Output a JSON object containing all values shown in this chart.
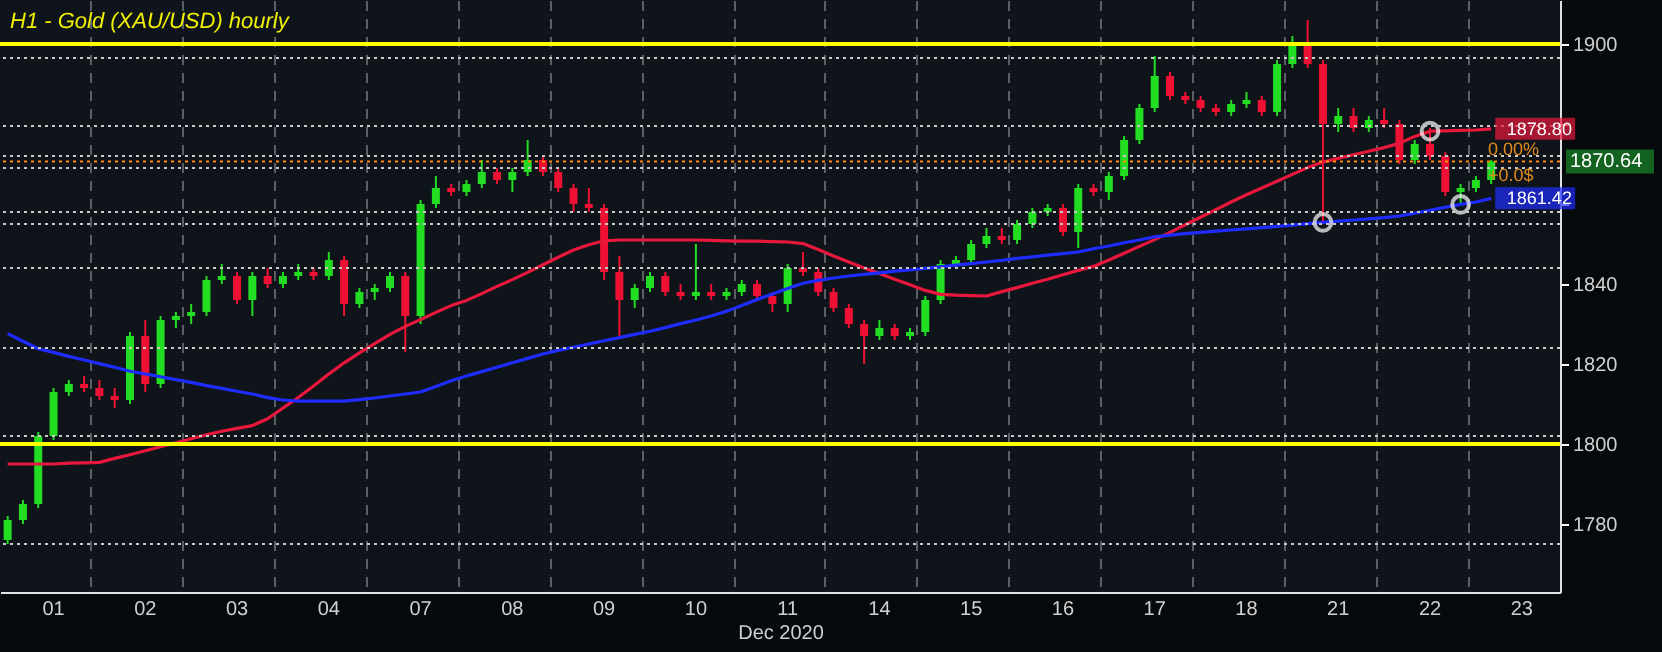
{
  "chart_data": {
    "type": "candlestick",
    "title": "H1 - Gold (XAU/USD) hourly",
    "xlabel": "Dec 2020",
    "categories": [
      null,
      null,
      null,
      "01",
      null,
      null,
      null,
      null,
      null,
      "02",
      null,
      null,
      null,
      null,
      null,
      "03",
      null,
      null,
      null,
      null,
      null,
      "04",
      null,
      null,
      null,
      null,
      null,
      "07",
      null,
      null,
      null,
      null,
      null,
      "08",
      null,
      null,
      null,
      null,
      null,
      "09",
      null,
      null,
      null,
      null,
      null,
      "10",
      null,
      null,
      null,
      null,
      null,
      "11",
      null,
      null,
      null,
      null,
      null,
      "14",
      null,
      null,
      null,
      null,
      null,
      "15",
      null,
      null,
      null,
      null,
      null,
      "16",
      null,
      null,
      null,
      null,
      null,
      "17",
      null,
      null,
      null,
      null,
      null,
      "18",
      null,
      null,
      null,
      null,
      null,
      "21",
      null,
      null,
      null,
      null,
      null,
      "22",
      null,
      null,
      null,
      null,
      null,
      "23",
      null,
      null
    ],
    "ohlc": [
      [
        1776,
        1782,
        1775,
        1781
      ],
      [
        1781,
        1786,
        1780,
        1785
      ],
      [
        1785,
        1803,
        1784,
        1802
      ],
      [
        1802,
        1814,
        1801,
        1813
      ],
      [
        1813,
        1816,
        1812,
        1815
      ],
      [
        1815,
        1817,
        1813,
        1814
      ],
      [
        1814,
        1816,
        1811,
        1812
      ],
      [
        1812,
        1814,
        1809,
        1811
      ],
      [
        1811,
        1828,
        1810,
        1827
      ],
      [
        1827,
        1831,
        1813,
        1815
      ],
      [
        1815,
        1832,
        1814,
        1831
      ],
      [
        1831,
        1833,
        1829,
        1832
      ],
      [
        1832,
        1835,
        1830,
        1833
      ],
      [
        1833,
        1842,
        1832,
        1841
      ],
      [
        1841,
        1845,
        1840,
        1842
      ],
      [
        1842,
        1843,
        1835,
        1836
      ],
      [
        1836,
        1843,
        1832,
        1842
      ],
      [
        1842,
        1844,
        1839,
        1840
      ],
      [
        1840,
        1843,
        1839,
        1842
      ],
      [
        1842,
        1845,
        1841,
        1843
      ],
      [
        1843,
        1844,
        1841,
        1842
      ],
      [
        1842,
        1848,
        1841,
        1846
      ],
      [
        1846,
        1847,
        1832,
        1835
      ],
      [
        1835,
        1839,
        1834,
        1838
      ],
      [
        1838,
        1840,
        1836,
        1839
      ],
      [
        1839,
        1843,
        1838,
        1842
      ],
      [
        1842,
        1843,
        1823,
        1832
      ],
      [
        1832,
        1861,
        1830,
        1860
      ],
      [
        1860,
        1867,
        1859,
        1864
      ],
      [
        1864,
        1865,
        1862,
        1863
      ],
      [
        1863,
        1866,
        1862,
        1865
      ],
      [
        1865,
        1871,
        1864,
        1868
      ],
      [
        1868,
        1869,
        1865,
        1866
      ],
      [
        1866,
        1869,
        1863,
        1868
      ],
      [
        1868,
        1876,
        1867,
        1871
      ],
      [
        1871,
        1872,
        1867,
        1868
      ],
      [
        1868,
        1869,
        1863,
        1864
      ],
      [
        1864,
        1865,
        1858,
        1860
      ],
      [
        1860,
        1864,
        1858,
        1859
      ],
      [
        1859,
        1860,
        1841,
        1843
      ],
      [
        1843,
        1847,
        1827,
        1836
      ],
      [
        1836,
        1840,
        1834,
        1839
      ],
      [
        1839,
        1843,
        1838,
        1842
      ],
      [
        1842,
        1843,
        1837,
        1838
      ],
      [
        1838,
        1840,
        1836,
        1837
      ],
      [
        1837,
        1850,
        1836,
        1838
      ],
      [
        1838,
        1840,
        1836,
        1837
      ],
      [
        1837,
        1839,
        1836,
        1838
      ],
      [
        1838,
        1841,
        1837,
        1840
      ],
      [
        1840,
        1841,
        1836,
        1837
      ],
      [
        1837,
        1838,
        1833,
        1835
      ],
      [
        1835,
        1845,
        1833,
        1844
      ],
      [
        1844,
        1848,
        1842,
        1843
      ],
      [
        1843,
        1844,
        1837,
        1838
      ],
      [
        1838,
        1839,
        1833,
        1834
      ],
      [
        1834,
        1835,
        1829,
        1830
      ],
      [
        1830,
        1831,
        1820,
        1827
      ],
      [
        1827,
        1831,
        1826,
        1829
      ],
      [
        1829,
        1830,
        1826,
        1827
      ],
      [
        1827,
        1829,
        1826,
        1828
      ],
      [
        1828,
        1837,
        1827,
        1836
      ],
      [
        1836,
        1846,
        1835,
        1845
      ],
      [
        1845,
        1847,
        1844,
        1846
      ],
      [
        1846,
        1851,
        1845,
        1850
      ],
      [
        1850,
        1854,
        1849,
        1852
      ],
      [
        1852,
        1854,
        1850,
        1851
      ],
      [
        1851,
        1856,
        1850,
        1855
      ],
      [
        1855,
        1859,
        1854,
        1858
      ],
      [
        1858,
        1860,
        1857,
        1859
      ],
      [
        1859,
        1860,
        1852,
        1853
      ],
      [
        1853,
        1865,
        1849,
        1864
      ],
      [
        1864,
        1865,
        1862,
        1863
      ],
      [
        1863,
        1868,
        1861,
        1867
      ],
      [
        1867,
        1877,
        1866,
        1876
      ],
      [
        1876,
        1885,
        1875,
        1884
      ],
      [
        1884,
        1897,
        1883,
        1892
      ],
      [
        1892,
        1893,
        1886,
        1887
      ],
      [
        1887,
        1888,
        1885,
        1886
      ],
      [
        1886,
        1887,
        1883,
        1884
      ],
      [
        1884,
        1885,
        1882,
        1883
      ],
      [
        1883,
        1886,
        1882,
        1885
      ],
      [
        1885,
        1888,
        1884,
        1886
      ],
      [
        1886,
        1887,
        1882,
        1883
      ],
      [
        1883,
        1896,
        1882,
        1895
      ],
      [
        1895,
        1902,
        1894,
        1900
      ],
      [
        1900,
        1906,
        1894,
        1895
      ],
      [
        1895,
        1896,
        1855,
        1880
      ],
      [
        1880,
        1884,
        1878,
        1882
      ],
      [
        1882,
        1884,
        1878,
        1879
      ],
      [
        1879,
        1882,
        1878,
        1881
      ],
      [
        1881,
        1884,
        1879,
        1880
      ],
      [
        1880,
        1881,
        1870,
        1871
      ],
      [
        1871,
        1876,
        1870,
        1875
      ],
      [
        1875,
        1879,
        1871,
        1872
      ],
      [
        1872,
        1873,
        1862,
        1863
      ],
      [
        1863,
        1865,
        1860,
        1864
      ],
      [
        1864,
        1867,
        1863,
        1866
      ],
      [
        1866,
        1871,
        1865,
        1870.64
      ],
      null,
      null,
      null,
      null
    ],
    "colors": [
      "#22dd22",
      "#22dd22",
      "#22dd22",
      "#22dd22",
      "#22dd22",
      "#ee1133",
      "#ee1133",
      "#ee1133",
      "#22dd22",
      "#ee1133",
      "#22dd22",
      "#22dd22",
      "#22dd22",
      "#22dd22",
      "#22dd22",
      "#ee1133",
      "#22dd22",
      "#ee1133",
      "#22dd22",
      "#22dd22",
      "#ee1133",
      "#22dd22",
      "#ee1133",
      "#22dd22",
      "#22dd22",
      "#22dd22",
      "#ee1133",
      "#22dd22",
      "#22dd22",
      "#ee1133",
      "#22dd22",
      "#22dd22",
      "#ee1133",
      "#22dd22",
      "#22dd22",
      "#ee1133",
      "#ee1133",
      "#ee1133",
      "#ee1133",
      "#ee1133",
      "#ee1133",
      "#22dd22",
      "#22dd22",
      "#ee1133",
      "#ee1133",
      "#22dd22",
      "#ee1133",
      "#22dd22",
      "#22dd22",
      "#ee1133",
      "#ee1133",
      "#22dd22",
      "#ee1133",
      "#ee1133",
      "#ee1133",
      "#ee1133",
      "#ee1133",
      "#22dd22",
      "#ee1133",
      "#22dd22",
      "#22dd22",
      "#22dd22",
      "#22dd22",
      "#22dd22",
      "#22dd22",
      "#ee1133",
      "#22dd22",
      "#22dd22",
      "#22dd22",
      "#ee1133",
      "#22dd22",
      "#ee1133",
      "#22dd22",
      "#22dd22",
      "#22dd22",
      "#22dd22",
      "#ee1133",
      "#ee1133",
      "#ee1133",
      "#ee1133",
      "#22dd22",
      "#22dd22",
      "#ee1133",
      "#22dd22",
      "#22dd22",
      "#ee1133",
      "#ee1133",
      "#22dd22",
      "#ee1133",
      "#22dd22",
      "#ee1133",
      "#ee1133",
      "#22dd22",
      "#ee1133",
      "#ee1133",
      "#22dd22",
      "#22dd22",
      "#22dd22",
      null,
      null,
      null,
      null
    ],
    "series": [
      {
        "type": "line",
        "color": "#e8183c",
        "values": [
          1795,
          1795,
          1795,
          1795,
          1795.2,
          1795.3,
          1795.4,
          1796.4,
          1797.3,
          1798.3,
          1799.3,
          1800.3,
          1801.3,
          1802.3,
          1803.2,
          1803.9,
          1804.6,
          1806.3,
          1809,
          1811.6,
          1814.5,
          1817.5,
          1820.3,
          1822.8,
          1825.1,
          1827.4,
          1829.4,
          1831.1,
          1832.9,
          1834.6,
          1835.9,
          1837.6,
          1839.4,
          1841.1,
          1842.9,
          1844.8,
          1846.7,
          1848.5,
          1849.8,
          1850.8,
          1851,
          1851,
          1851,
          1851,
          1851,
          1851,
          1850.9,
          1850.8,
          1850.7,
          1850.7,
          1850.6,
          1850.5,
          1850.1,
          1848.6,
          1847,
          1845.5,
          1844,
          1842.6,
          1841.2,
          1839.8,
          1838.4,
          1837.4,
          1837.2,
          1837.1,
          1837,
          1838.1,
          1839.1,
          1840.2,
          1841.2,
          1842.3,
          1843.4,
          1844.4,
          1846,
          1847.7,
          1849.4,
          1851.1,
          1852.9,
          1854.8,
          1856.7,
          1858.6,
          1860.5,
          1862.3,
          1864,
          1865.7,
          1867.4,
          1869.1,
          1870.5,
          1871.4,
          1872.3,
          1873.2,
          1874.1,
          1875.2,
          1876.9,
          1878.2,
          1878.3,
          1878.4,
          1878.5,
          1878.8,
          null,
          null,
          null,
          null
        ],
        "value_labels": [
          null,
          null,
          null,
          null,
          null,
          null,
          null,
          null,
          null,
          null,
          null,
          null,
          null,
          null,
          null,
          null,
          null,
          null,
          null,
          null,
          null,
          null,
          null,
          null,
          null,
          null,
          null,
          null,
          null,
          null,
          null,
          null,
          null,
          null,
          null,
          null,
          null,
          null,
          null,
          null,
          null,
          null,
          null,
          null,
          null,
          null,
          null,
          null,
          null,
          null,
          null,
          null,
          null,
          null,
          null,
          null,
          null,
          null,
          null,
          null,
          null,
          null,
          null,
          null,
          null,
          null,
          null,
          null,
          null,
          null,
          null,
          null,
          null,
          null,
          null,
          null,
          null,
          null,
          null,
          null,
          null,
          null,
          null,
          null,
          null,
          null,
          null,
          null,
          null,
          null,
          null,
          null,
          null,
          null,
          null,
          null,
          null,
          "1878.80",
          null,
          null,
          null,
          null
        ]
      },
      {
        "type": "line",
        "color": "#1f2cff",
        "values": [
          1827.6,
          1825.7,
          1823.8,
          1822.9,
          1821.9,
          1821,
          1820.1,
          1819.2,
          1818.2,
          1817.5,
          1816.8,
          1816.1,
          1815.4,
          1814.6,
          1813.9,
          1813.2,
          1812.5,
          1811.6,
          1811,
          1810.7,
          1810.7,
          1810.7,
          1810.7,
          1811.1,
          1811.5,
          1812,
          1812.5,
          1813,
          1814.4,
          1815.8,
          1817,
          1818.1,
          1819.2,
          1820.3,
          1821.4,
          1822.5,
          1823.4,
          1824.2,
          1825,
          1825.8,
          1826.6,
          1827.4,
          1828.2,
          1829.1,
          1830.1,
          1831,
          1832,
          1833.2,
          1834.6,
          1836.1,
          1837.5,
          1838.9,
          1840.2,
          1840.9,
          1841.5,
          1842,
          1842.4,
          1842.8,
          1843.2,
          1843.5,
          1843.9,
          1844.3,
          1844.7,
          1845.1,
          1845.5,
          1845.9,
          1846.4,
          1846.8,
          1847.2,
          1847.6,
          1848,
          1848.8,
          1849.5,
          1850.3,
          1851,
          1851.8,
          1852.2,
          1852.6,
          1852.9,
          1853.2,
          1853.5,
          1853.8,
          1854.1,
          1854.4,
          1854.7,
          1855.1,
          1855.4,
          1855.7,
          1856,
          1856.3,
          1856.6,
          1857,
          1857.7,
          1858.4,
          1859.2,
          1859.9,
          1860.5,
          1861.42,
          null,
          null,
          null,
          null
        ],
        "value_labels": [
          null,
          null,
          null,
          null,
          null,
          null,
          null,
          null,
          null,
          null,
          null,
          null,
          null,
          null,
          null,
          null,
          null,
          null,
          null,
          null,
          null,
          null,
          null,
          null,
          null,
          null,
          null,
          null,
          null,
          null,
          null,
          null,
          null,
          null,
          null,
          null,
          null,
          null,
          null,
          null,
          null,
          null,
          null,
          null,
          null,
          null,
          null,
          null,
          null,
          null,
          null,
          null,
          null,
          null,
          null,
          null,
          null,
          null,
          null,
          null,
          null,
          null,
          null,
          null,
          null,
          null,
          null,
          null,
          null,
          null,
          null,
          null,
          null,
          null,
          null,
          null,
          null,
          null,
          null,
          null,
          null,
          null,
          null,
          null,
          null,
          null,
          null,
          null,
          null,
          null,
          null,
          null,
          null,
          null,
          null,
          null,
          null,
          "1861.42",
          null,
          null,
          null,
          null
        ]
      },
      {
        "type": "scatter",
        "color": "#ffffff",
        "marker": "circle",
        "values": [
          null,
          null,
          null,
          null,
          null,
          null,
          null,
          null,
          null,
          null,
          null,
          null,
          null,
          null,
          null,
          null,
          null,
          null,
          null,
          null,
          null,
          null,
          null,
          null,
          null,
          null,
          null,
          null,
          null,
          null,
          null,
          null,
          null,
          null,
          null,
          null,
          null,
          null,
          null,
          null,
          null,
          null,
          null,
          null,
          null,
          null,
          null,
          null,
          null,
          null,
          null,
          null,
          null,
          null,
          null,
          null,
          null,
          null,
          null,
          null,
          null,
          null,
          null,
          null,
          null,
          null,
          null,
          null,
          null,
          null,
          null,
          null,
          null,
          null,
          null,
          null,
          null,
          null,
          null,
          null,
          null,
          null,
          null,
          null,
          null,
          null,
          1855.4,
          null,
          null,
          null,
          null,
          null,
          null,
          1878.2,
          null,
          1859.9,
          null,
          null,
          null,
          null,
          null,
          null
        ]
      }
    ],
    "ylim": [
      1763,
      1911
    ],
    "yticks": [
      1780,
      1800,
      1820,
      1840,
      {
        "value": 1860,
        "label": null
      },
      {
        "value": 1880,
        "label": null
      },
      1900
    ],
    "grid": "x",
    "ref_lines": [
      {
        "axis": "y",
        "value": 1900,
        "color": "#ffff00",
        "line_style": "solid"
      },
      {
        "axis": "y",
        "value": 1800,
        "color": "#ffff00",
        "line_style": "solid"
      },
      {
        "axis": "y",
        "value": 1870.64,
        "color": "#ff8c00",
        "line_style": "dotted",
        "label": "1870.64"
      },
      {
        "axis": "y",
        "value": 1896.5,
        "color": "#c8c8c8",
        "line_style": "dotted"
      },
      {
        "axis": "y",
        "value": 1879.5,
        "color": "#c8c8c8",
        "line_style": "dotted"
      },
      {
        "axis": "y",
        "value": 1872,
        "color": "#c8c8c8",
        "line_style": "dotted"
      },
      {
        "axis": "y",
        "value": 1869,
        "color": "#c8c8c8",
        "line_style": "dotted"
      },
      {
        "axis": "y",
        "value": 1858,
        "color": "#c8c8c8",
        "line_style": "dotted"
      },
      {
        "axis": "y",
        "value": 1855,
        "color": "#c8c8c8",
        "line_style": "dotted"
      },
      {
        "axis": "y",
        "value": 1844,
        "color": "#c8c8c8",
        "line_style": "dotted"
      },
      {
        "axis": "y",
        "value": 1824,
        "color": "#c8c8c8",
        "line_style": "dotted"
      },
      {
        "axis": "y",
        "value": 1802,
        "color": "#c8c8c8",
        "line_style": "dotted"
      },
      {
        "axis": "y",
        "value": 1775,
        "color": "#c8c8c8",
        "line_style": "dotted"
      }
    ],
    "annotations": [
      "0.00%",
      "+0.0$"
    ]
  }
}
